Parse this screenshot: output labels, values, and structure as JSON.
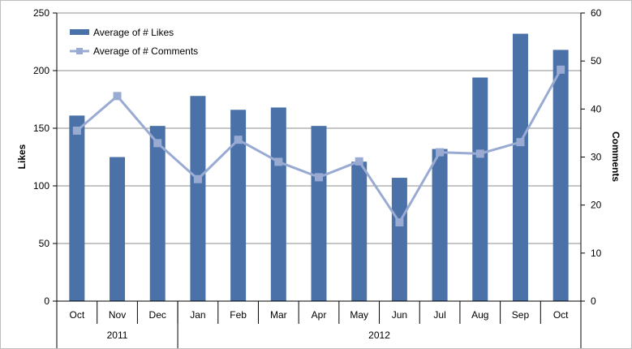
{
  "chart_data": {
    "type": "bar",
    "combo": "bar + line (secondary axis)",
    "categories": [
      "Oct",
      "Nov",
      "Dec",
      "Jan",
      "Feb",
      "Mar",
      "Apr",
      "May",
      "Jun",
      "Jul",
      "Aug",
      "Sep",
      "Oct"
    ],
    "category_groups": [
      {
        "label": "2011",
        "count": 3
      },
      {
        "label": "2012",
        "count": 10
      }
    ],
    "series": [
      {
        "name": "Average of # Likes",
        "type": "bar",
        "axis": "primary",
        "color": "#4a72a8",
        "values": [
          161,
          125,
          152,
          178,
          166,
          168,
          152,
          121,
          107,
          132,
          194,
          232,
          218
        ]
      },
      {
        "name": "Average of # Comments",
        "type": "line",
        "axis": "secondary",
        "color": "#9aabd3",
        "values": [
          35.5,
          42.7,
          32.9,
          25.4,
          33.6,
          29.0,
          25.8,
          29.1,
          16.4,
          31.0,
          30.7,
          33.1,
          48.2
        ]
      }
    ],
    "ylabel": "Likes",
    "y2label": "Comments",
    "ylim": [
      0,
      250
    ],
    "y2lim": [
      0,
      60
    ],
    "yticks": [
      "0",
      "50",
      "100",
      "150",
      "200",
      "250"
    ],
    "y2ticks": [
      "0",
      "10",
      "20",
      "30",
      "40",
      "50",
      "60"
    ],
    "grid": "horizontal",
    "legend": "top-left"
  }
}
